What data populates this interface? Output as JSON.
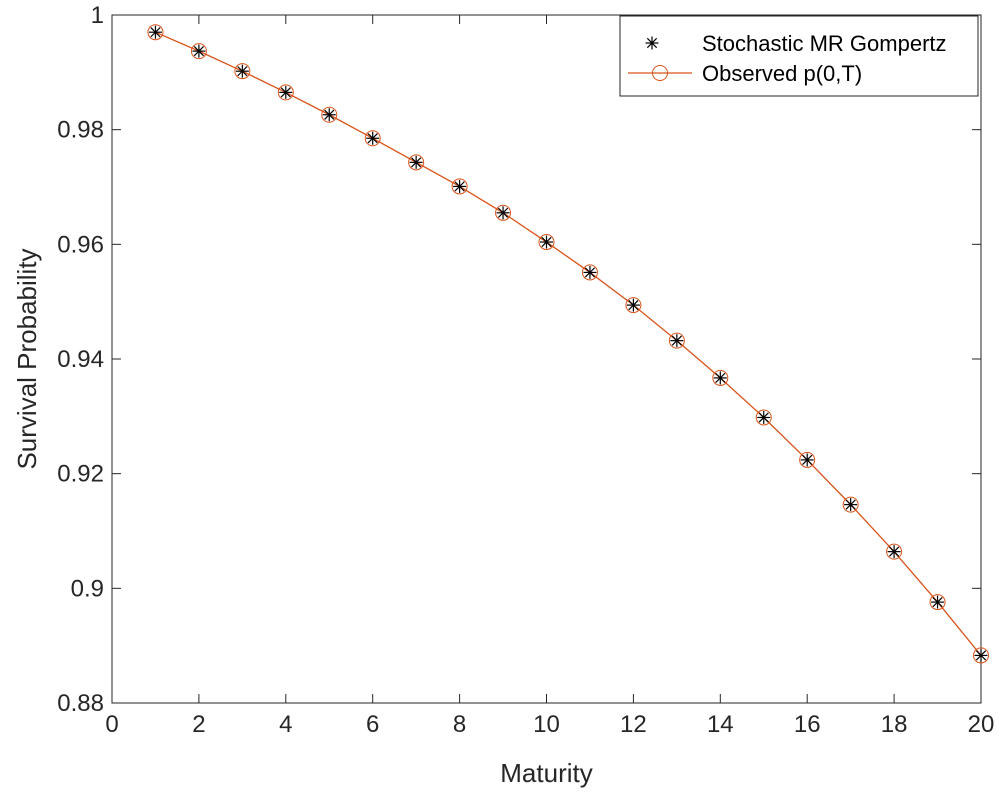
{
  "chart_data": {
    "type": "line",
    "title": "",
    "xlabel": "Maturity",
    "ylabel": "Survival Probability",
    "xlim": [
      0,
      20
    ],
    "ylim": [
      0.88,
      1.0
    ],
    "xticks": [
      0,
      2,
      4,
      6,
      8,
      10,
      12,
      14,
      16,
      18,
      20
    ],
    "xtick_labels": [
      "0",
      "2",
      "4",
      "6",
      "8",
      "10",
      "12",
      "14",
      "16",
      "18",
      "20"
    ],
    "yticks": [
      0.88,
      0.9,
      0.92,
      0.94,
      0.96,
      0.98,
      1.0
    ],
    "ytick_labels": [
      "0.88",
      "0.9",
      "0.92",
      "0.94",
      "0.96",
      "0.98",
      "1"
    ],
    "grid": false,
    "legend_position": "top-right",
    "x": [
      1,
      2,
      3,
      4,
      5,
      6,
      7,
      8,
      9,
      10,
      11,
      12,
      13,
      14,
      15,
      16,
      17,
      18,
      19,
      20
    ],
    "series": [
      {
        "name": "Stochastic MR Gompertz",
        "marker": "asterisk",
        "line": "none",
        "color": "#000000",
        "values": [
          0.997,
          0.9937,
          0.9902,
          0.9865,
          0.9826,
          0.9785,
          0.9743,
          0.9701,
          0.9655,
          0.9604,
          0.9551,
          0.9494,
          0.9432,
          0.9367,
          0.9298,
          0.9224,
          0.9146,
          0.9064,
          0.8976,
          0.8883
        ]
      },
      {
        "name": "Observed p(0,T)",
        "marker": "circle",
        "line": "solid",
        "color": "#d95319",
        "values": [
          0.997,
          0.9937,
          0.9902,
          0.9865,
          0.9826,
          0.9785,
          0.9743,
          0.9701,
          0.9655,
          0.9604,
          0.9551,
          0.9494,
          0.9432,
          0.9367,
          0.9298,
          0.9224,
          0.9146,
          0.9064,
          0.8976,
          0.8883
        ]
      }
    ]
  }
}
